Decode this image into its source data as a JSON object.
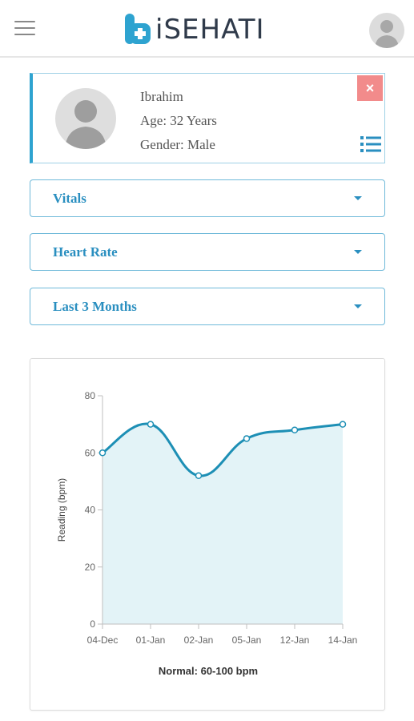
{
  "header": {
    "app_name": "iSEHATI",
    "menu_icon": "hamburger-menu-icon",
    "avatar_icon": "user-avatar-icon"
  },
  "patient": {
    "name": "Ibrahim",
    "age": "Age: 32 Years",
    "gender": "Gender: Male",
    "close_label": "×"
  },
  "filters": {
    "category": "Vitals",
    "metric": "Heart Rate",
    "range": "Last 3 Months"
  },
  "colors": {
    "accent": "#2ea3d0",
    "line": "#1d8fb5",
    "fill": "#e3f3f7",
    "close": "#f28b8b"
  },
  "chart_data": {
    "type": "area",
    "categories": [
      "04-Dec",
      "01-Jan",
      "02-Jan",
      "05-Jan",
      "12-Jan",
      "14-Jan"
    ],
    "values": [
      60,
      70,
      52,
      65,
      68,
      70
    ],
    "ylabel": "Reading (bpm)",
    "ylim": [
      0,
      80
    ],
    "yticks": [
      0,
      20,
      40,
      60,
      80
    ],
    "footer": "Normal: 60-100 bpm",
    "grid": false
  }
}
